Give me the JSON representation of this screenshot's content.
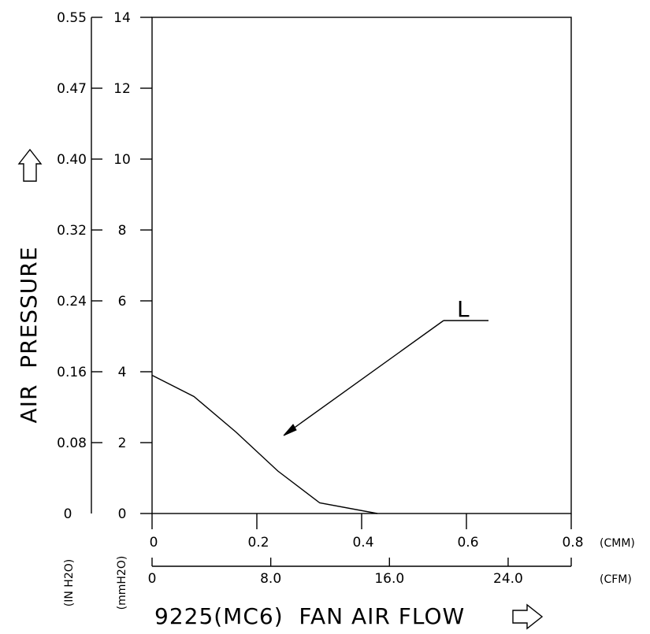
{
  "colors": {
    "ink": "#000000",
    "background": "#ffffff"
  },
  "chart_data": {
    "type": "line",
    "xlabel": "9225(MC6)  FAN AIR FLOW",
    "ylabel": "AIR  PRESSURE",
    "x_unit_primary": "(CMM)",
    "x_unit_secondary": "(CFM)",
    "y_unit_primary": "(mmH2O)",
    "y_unit_secondary": "(IN H2O)",
    "x_ticks_cmm": [
      "0",
      "0.2",
      "0.4",
      "0.6",
      "0.8"
    ],
    "x_ticks_cfm": [
      "0",
      "8.0",
      "16.0",
      "24.0"
    ],
    "y_ticks_mmh2o": [
      "0",
      "2",
      "4",
      "6",
      "8",
      "10",
      "12",
      "14"
    ],
    "y_ticks_inh2o": [
      "0",
      "0.08",
      "0.16",
      "0.24",
      "0.32",
      "0.40",
      "0.47",
      "0.55"
    ],
    "xlim": [
      0,
      0.8
    ],
    "ylim": [
      0,
      14
    ],
    "grid": false,
    "series": [
      {
        "name": "L",
        "x_unit": "CMM",
        "y_unit": "mmH2O",
        "points": [
          {
            "x": 0,
            "y": 3.9
          },
          {
            "x": 0.08,
            "y": 3.3
          },
          {
            "x": 0.16,
            "y": 2.3
          },
          {
            "x": 0.24,
            "y": 1.2
          },
          {
            "x": 0.32,
            "y": 0.3
          },
          {
            "x": 0.43,
            "y": 0
          }
        ]
      }
    ]
  }
}
